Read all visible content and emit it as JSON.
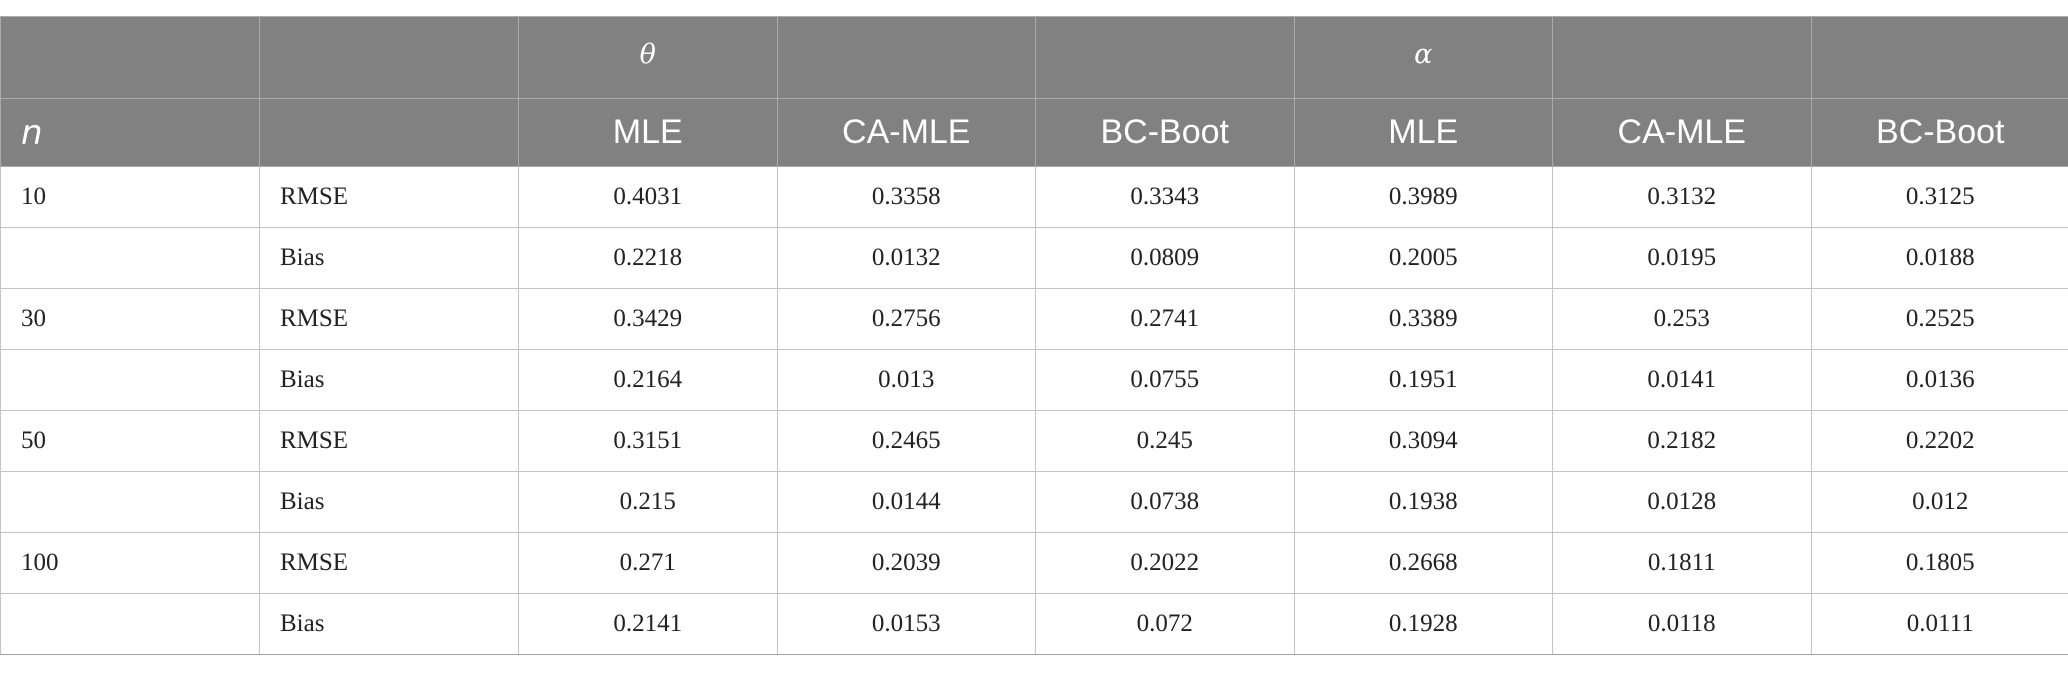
{
  "header": {
    "group_labels": [
      "",
      "",
      "θ",
      "",
      "",
      "α",
      "",
      ""
    ],
    "column_labels": [
      "n",
      "",
      "MLE",
      "CA-MLE",
      "BC-Boot",
      "MLE",
      "CA-MLE",
      "BC-Boot"
    ]
  },
  "rows": [
    {
      "n": "10",
      "stat": "RMSE",
      "values": [
        "0.4031",
        "0.3358",
        "0.3343",
        "0.3989",
        "0.3132",
        "0.3125"
      ]
    },
    {
      "n": "",
      "stat": "Bias",
      "values": [
        "0.2218",
        "0.0132",
        "0.0809",
        "0.2005",
        "0.0195",
        "0.0188"
      ]
    },
    {
      "n": "30",
      "stat": "RMSE",
      "values": [
        "0.3429",
        "0.2756",
        "0.2741",
        "0.3389",
        "0.253",
        "0.2525"
      ]
    },
    {
      "n": "",
      "stat": "Bias",
      "values": [
        "0.2164",
        "0.013",
        "0.0755",
        "0.1951",
        "0.0141",
        "0.0136"
      ]
    },
    {
      "n": "50",
      "stat": "RMSE",
      "values": [
        "0.3151",
        "0.2465",
        "0.245",
        "0.3094",
        "0.2182",
        "0.2202"
      ]
    },
    {
      "n": "",
      "stat": "Bias",
      "values": [
        "0.215",
        "0.0144",
        "0.0738",
        "0.1938",
        "0.0128",
        "0.012"
      ]
    },
    {
      "n": "100",
      "stat": "RMSE",
      "values": [
        "0.271",
        "0.2039",
        "0.2022",
        "0.2668",
        "0.1811",
        "0.1805"
      ]
    },
    {
      "n": "",
      "stat": "Bias",
      "values": [
        "0.2141",
        "0.0153",
        "0.072",
        "0.1928",
        "0.0118",
        "0.0111"
      ]
    }
  ]
}
